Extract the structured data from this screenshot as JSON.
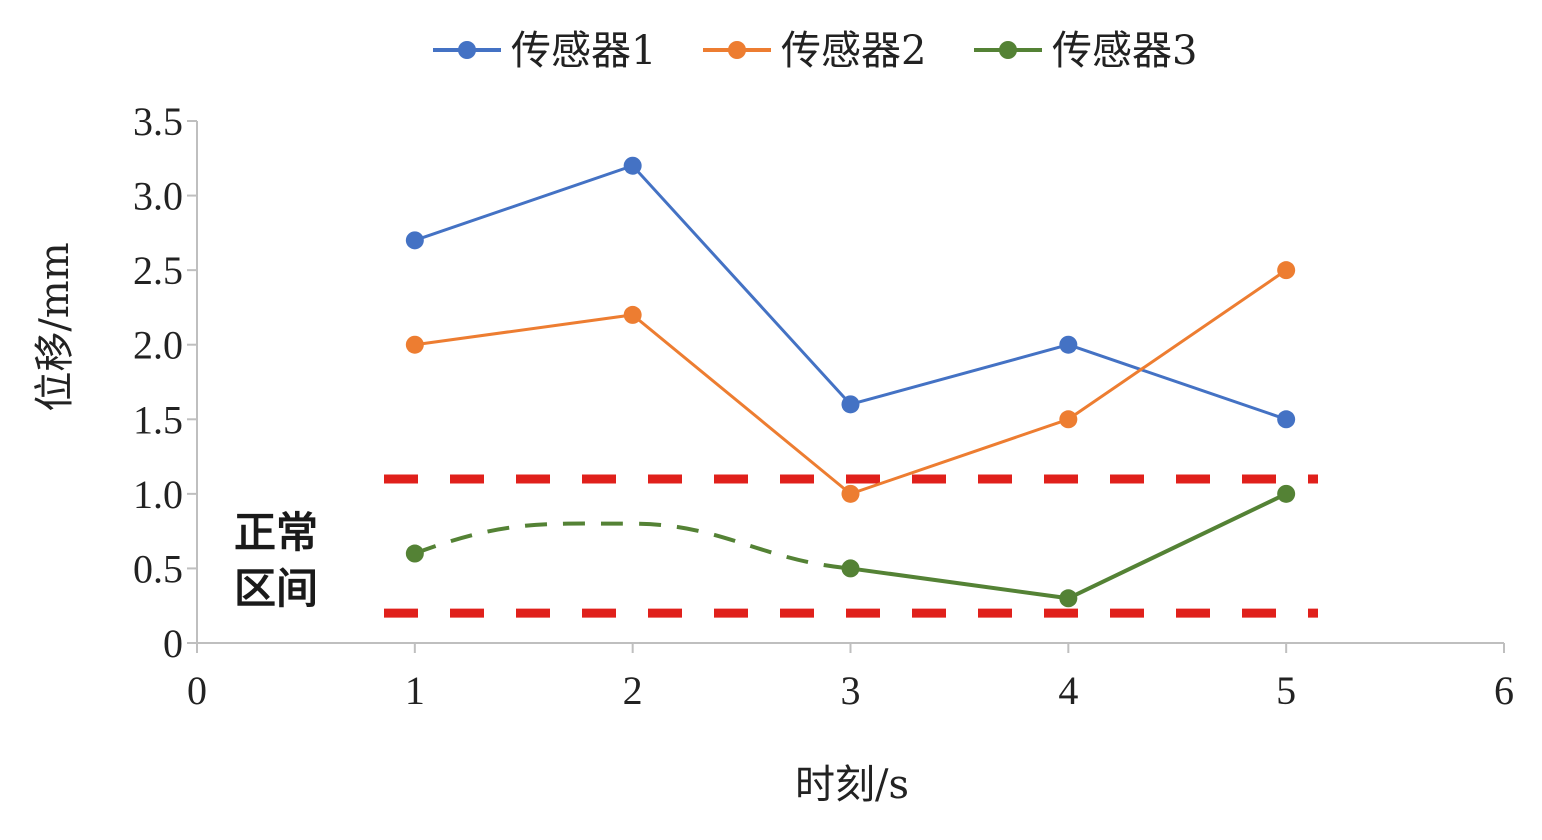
{
  "chart_data": {
    "type": "line",
    "title": "",
    "xlabel": "时刻/s",
    "ylabel": "位移/mm",
    "x": [
      1,
      2,
      3,
      4,
      5
    ],
    "xlim": [
      0,
      6
    ],
    "ylim": [
      0,
      3.5
    ],
    "x_ticks": [
      "0",
      "1",
      "2",
      "3",
      "4",
      "5",
      "6"
    ],
    "y_ticks": [
      "0",
      "0.5",
      "1.0",
      "1.5",
      "2.0",
      "2.5",
      "3.0",
      "3.5"
    ],
    "grid": false,
    "legend_position": "top-center",
    "series": [
      {
        "name": "传感器1",
        "color": "#4472C4",
        "values": [
          2.7,
          3.2,
          1.6,
          2.0,
          1.5
        ]
      },
      {
        "name": "传感器2",
        "color": "#ED7D31",
        "values": [
          2.0,
          2.2,
          1.0,
          1.5,
          2.5
        ]
      },
      {
        "name": "传感器3",
        "color": "#548235",
        "values": [
          0.6,
          null,
          0.5,
          0.3,
          1.0
        ],
        "interpolated_dashed": [
          [
            1,
            0.6
          ],
          [
            2,
            0.8
          ],
          [
            3,
            0.5
          ]
        ]
      }
    ],
    "reference_lines": [
      {
        "y": 1.1,
        "color": "#E0201B",
        "style": "dashed"
      },
      {
        "y": 0.2,
        "color": "#E0201B",
        "style": "dashed"
      }
    ],
    "annotation": {
      "line1": "正常",
      "line2": "区间"
    }
  }
}
